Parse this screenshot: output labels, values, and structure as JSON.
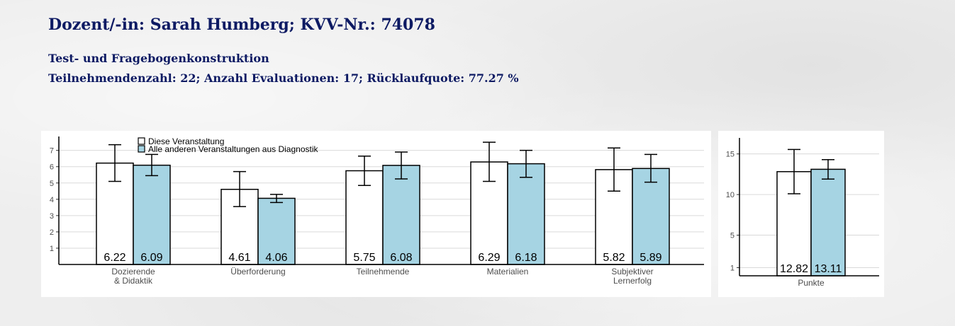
{
  "header": {
    "title": "Dozent/-in: Sarah Humberg; KVV-Nr.: 74078",
    "course": "Test- und Fragebogenkonstruktion",
    "info": "Teilnehmendenzahl: 22; Anzahl Evaluationen: 17; Rücklaufquote: 77.27 %"
  },
  "colors": {
    "this_course": "#ffffff",
    "other_courses": "#a6d4e3",
    "stroke": "#000000",
    "grid": "#d9d9d9"
  },
  "chart_data": [
    {
      "type": "bar",
      "categories": [
        "Dozierende\n& Didaktik",
        "Überforderung",
        "Teilnehmende",
        "Materialien",
        "Subjektiver\nLernerfolg"
      ],
      "series": [
        {
          "name": "Diese Veranstaltung",
          "color": "#ffffff",
          "values": [
            6.22,
            4.61,
            5.75,
            6.29,
            5.82
          ],
          "labels": [
            "6.22",
            "4.61",
            "5.75",
            "6.29",
            "5.82"
          ],
          "error": [
            [
              5.1,
              7.35
            ],
            [
              3.55,
              5.7
            ],
            [
              4.85,
              6.65
            ],
            [
              5.1,
              7.5
            ],
            [
              4.5,
              7.15
            ]
          ]
        },
        {
          "name": "Alle anderen Veranstaltungen aus Diagnostik",
          "color": "#a6d4e3",
          "values": [
            6.09,
            4.06,
            6.08,
            6.18,
            5.89
          ],
          "labels": [
            "6.09",
            "4.06",
            "6.08",
            "6.18",
            "5.89"
          ],
          "error": [
            [
              5.45,
              6.75
            ],
            [
              3.8,
              4.3
            ],
            [
              5.25,
              6.9
            ],
            [
              5.35,
              7.0
            ],
            [
              5.05,
              6.75
            ]
          ]
        }
      ],
      "yticks": [
        1,
        2,
        3,
        4,
        5,
        6,
        7
      ],
      "ylim": [
        0,
        8.2
      ],
      "grid": true,
      "legend": "top-left"
    },
    {
      "type": "bar",
      "categories": [
        "Punkte"
      ],
      "series": [
        {
          "name": "Diese Veranstaltung",
          "color": "#ffffff",
          "values": [
            12.82
          ],
          "labels": [
            "12.82"
          ],
          "error": [
            [
              10.1,
              15.55
            ]
          ]
        },
        {
          "name": "Alle anderen Veranstaltungen aus Diagnostik",
          "color": "#a6d4e3",
          "values": [
            13.11
          ],
          "labels": [
            "13.11"
          ],
          "error": [
            [
              11.9,
              14.3
            ]
          ]
        }
      ],
      "yticks": [
        1,
        5,
        10,
        15
      ],
      "ylim": [
        0,
        16.8
      ],
      "grid": true,
      "legend": "none"
    }
  ]
}
